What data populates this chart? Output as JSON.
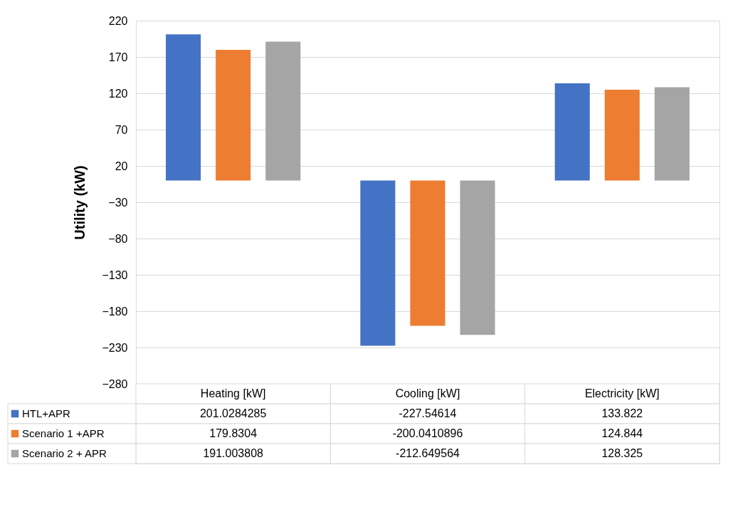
{
  "chart_data": {
    "type": "bar",
    "ylabel": "Utility (kW)",
    "categories": [
      "Heating [kW]",
      "Cooling [kW]",
      "Electricity [kW]"
    ],
    "series": [
      {
        "name": "HTL+APR",
        "color": "#4472c4",
        "values": [
          201.0284285,
          -227.54614,
          133.822
        ]
      },
      {
        "name": "Scenario 1 +APR",
        "color": "#ed7d31",
        "values": [
          179.8304,
          -200.0410896,
          124.844
        ]
      },
      {
        "name": "Scenario 2 + APR",
        "color": "#a5a5a5",
        "values": [
          191.003808,
          -212.649564,
          128.325
        ]
      }
    ],
    "ylim": [
      -280,
      220
    ],
    "yticks": [
      -280,
      -230,
      -180,
      -130,
      -80,
      -30,
      20,
      70,
      120,
      170,
      220
    ],
    "grid": "y",
    "data_labels": true,
    "legend": "bottom left"
  }
}
